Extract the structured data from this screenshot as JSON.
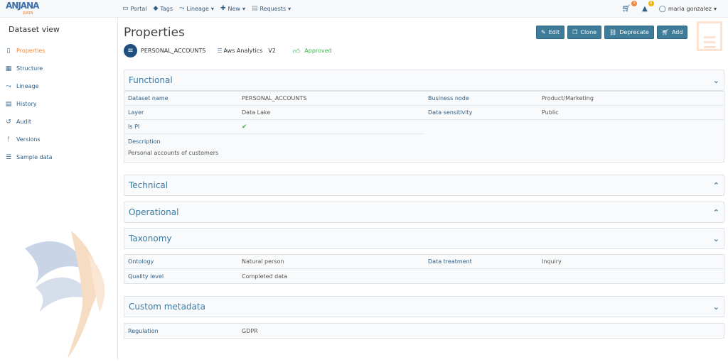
{
  "topnav": {
    "logo": "ANJANA",
    "logo_sub": "DATA",
    "items": [
      {
        "label": "Portal",
        "icon": "monitor-icon"
      },
      {
        "label": "Tags",
        "icon": "tags-icon"
      },
      {
        "label": "Lineage",
        "icon": "lineage-icon",
        "dropdown": true
      },
      {
        "label": "New",
        "icon": "plus-icon",
        "dropdown": true
      },
      {
        "label": "Requests",
        "icon": "requests-icon",
        "dropdown": true
      }
    ],
    "cart_count": "3",
    "notifications_count": "0",
    "user": "maria gonzalez",
    "badge_colors": {
      "cart": "#f0863a",
      "bell": "#f2b705"
    }
  },
  "sidebar": {
    "title": "Dataset view",
    "items": [
      {
        "label": "Properties",
        "active": true
      },
      {
        "label": "Structure"
      },
      {
        "label": "Lineage"
      },
      {
        "label": "History"
      },
      {
        "label": "Audit"
      },
      {
        "label": "Versions"
      },
      {
        "label": "Sample data"
      }
    ]
  },
  "page": {
    "title": "Properties",
    "dataset": "PERSONAL_ACCOUNTS",
    "system": "Aws Analytics",
    "version": "V2",
    "status": "Approved",
    "status_color": "#3cb54a"
  },
  "actions": {
    "edit": "Edit",
    "clone": "Clone",
    "deprecate": "Deprecate",
    "add": "Add"
  },
  "sections": {
    "functional": {
      "title": "Functional",
      "expanded": true,
      "fields": {
        "dataset_name_label": "Dataset name",
        "dataset_name": "PERSONAL_ACCOUNTS",
        "business_node_label": "Business node",
        "business_node": "Product/Marketing",
        "layer_label": "Layer",
        "layer": "Data Lake",
        "data_sensitivity_label": "Data sensitivity",
        "data_sensitivity": "Public",
        "is_pi_label": "Is PI",
        "is_pi": true,
        "description_label": "Description",
        "description": "Personal accounts of customers"
      }
    },
    "technical": {
      "title": "Technical",
      "expanded": false
    },
    "operational": {
      "title": "Operational",
      "expanded": false
    },
    "taxonomy": {
      "title": "Taxonomy",
      "expanded": true,
      "fields": {
        "ontology_label": "Ontology",
        "ontology": "Natural person",
        "data_treatment_label": "Data treatment",
        "data_treatment": "Inquiry",
        "quality_level_label": "Quality level",
        "quality_level": "Completed data"
      }
    },
    "custom": {
      "title": "Custom metadata",
      "expanded": true,
      "fields": {
        "regulation_label": "Regulation",
        "regulation": "GDPR"
      }
    }
  }
}
